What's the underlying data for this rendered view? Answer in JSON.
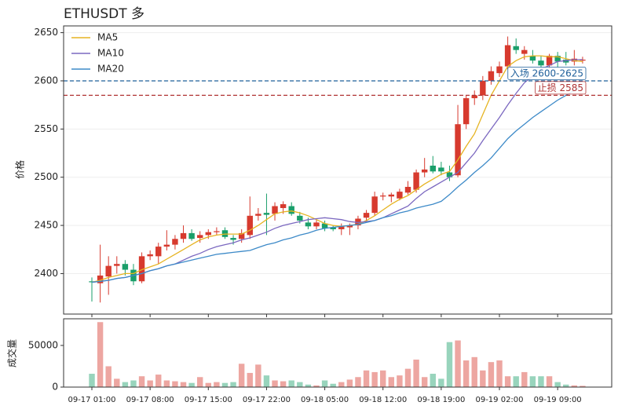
{
  "chart_data": {
    "type": "candlestick",
    "title": "ETHUSDT  多",
    "ylabel": "价格",
    "categories": [
      "09-17 01:00",
      null,
      null,
      null,
      null,
      null,
      null,
      "09-17 08:00",
      null,
      null,
      null,
      null,
      null,
      null,
      "09-17 15:00",
      null,
      null,
      null,
      null,
      null,
      null,
      "09-17 22:00",
      null,
      null,
      null,
      null,
      null,
      null,
      "09-18 05:00",
      null,
      null,
      null,
      null,
      null,
      null,
      "09-18 12:00",
      null,
      null,
      null,
      null,
      null,
      null,
      "09-18 19:00",
      null,
      null,
      null,
      null,
      null,
      null,
      "09-19 02:00",
      null,
      null,
      null,
      null,
      null,
      null,
      "09-19 09:00",
      null,
      null,
      null
    ],
    "xlim": [
      -3.4,
      62.5
    ],
    "ylim": [
      2358,
      2657
    ],
    "yticks": [
      2400,
      2450,
      2500,
      2550,
      2600,
      2650
    ],
    "grid": true,
    "up_color": "#d73a2e",
    "down_color": "#1a9f6a",
    "open": [
      2392,
      2390,
      2397,
      2408,
      2410,
      2404,
      2392,
      2418,
      2418,
      2428,
      2430,
      2436,
      2442,
      2437,
      2440,
      2443,
      2445,
      2437,
      2436,
      2440,
      2460,
      2463,
      2462,
      2468,
      2470,
      2460,
      2453,
      2449,
      2452,
      2448,
      2446,
      2448,
      2450,
      2458,
      2463,
      2480,
      2480,
      2478,
      2484,
      2487,
      2505,
      2512,
      2510,
      2505,
      2502,
      2555,
      2582,
      2585,
      2600,
      2608,
      2615,
      2636,
      2628,
      2626,
      2621,
      2616,
      2626,
      2622,
      2620,
      2621
    ],
    "high": [
      2396,
      2430,
      2418,
      2418,
      2414,
      2410,
      2422,
      2424,
      2432,
      2445,
      2440,
      2450,
      2446,
      2444,
      2446,
      2448,
      2448,
      2440,
      2446,
      2480,
      2468,
      2483,
      2474,
      2475,
      2474,
      2464,
      2458,
      2456,
      2455,
      2450,
      2452,
      2452,
      2460,
      2466,
      2485,
      2484,
      2484,
      2488,
      2496,
      2508,
      2520,
      2522,
      2516,
      2512,
      2575,
      2585,
      2590,
      2605,
      2615,
      2620,
      2646,
      2644,
      2636,
      2632,
      2626,
      2628,
      2630,
      2630,
      2632,
      2625
    ],
    "low": [
      2371,
      2370,
      2378,
      2400,
      2398,
      2388,
      2390,
      2414,
      2410,
      2424,
      2425,
      2432,
      2434,
      2432,
      2436,
      2440,
      2436,
      2430,
      2432,
      2436,
      2455,
      2440,
      2455,
      2462,
      2460,
      2452,
      2446,
      2446,
      2444,
      2444,
      2440,
      2440,
      2446,
      2454,
      2460,
      2476,
      2474,
      2476,
      2482,
      2484,
      2500,
      2504,
      2502,
      2496,
      2500,
      2550,
      2575,
      2580,
      2596,
      2604,
      2612,
      2628,
      2622,
      2618,
      2612,
      2612,
      2614,
      2616,
      2616,
      2618
    ],
    "close": [
      2391,
      2398,
      2408,
      2410,
      2404,
      2392,
      2418,
      2420,
      2428,
      2430,
      2436,
      2442,
      2436,
      2440,
      2443,
      2444,
      2438,
      2435,
      2442,
      2460,
      2462,
      2461,
      2470,
      2472,
      2462,
      2455,
      2449,
      2453,
      2447,
      2446,
      2449,
      2450,
      2457,
      2463,
      2480,
      2481,
      2482,
      2485,
      2490,
      2505,
      2508,
      2506,
      2506,
      2500,
      2555,
      2582,
      2585,
      2600,
      2610,
      2615,
      2637,
      2632,
      2632,
      2621,
      2616,
      2626,
      2620,
      2619,
      2623,
      2622
    ],
    "series": [
      {
        "name": "MA5",
        "color": "#e6b422",
        "values": [
          2391,
          2393,
          2396,
          2398,
          2400,
          2400,
          2404,
          2407,
          2410,
          2415,
          2420,
          2425,
          2430,
          2435,
          2438,
          2440,
          2441,
          2441,
          2441,
          2445,
          2450,
          2456,
          2462,
          2464,
          2465,
          2463,
          2460,
          2456,
          2452,
          2450,
          2449,
          2450,
          2451,
          2455,
          2460,
          2466,
          2472,
          2477,
          2481,
          2487,
          2493,
          2498,
          2503,
          2506,
          2518,
          2532,
          2545,
          2565,
          2585,
          2600,
          2615,
          2621,
          2625,
          2626,
          2626,
          2625,
          2625,
          2623,
          2621,
          2620
        ]
      },
      {
        "name": "MA10",
        "color": "#7b68c0",
        "values": [
          2391,
          2392,
          2393,
          2395,
          2396,
          2398,
          2400,
          2403,
          2405,
          2408,
          2410,
          2414,
          2418,
          2421,
          2425,
          2428,
          2430,
          2432,
          2435,
          2437,
          2440,
          2443,
          2447,
          2450,
          2452,
          2454,
          2456,
          2457,
          2458,
          2457,
          2456,
          2454,
          2453,
          2454,
          2455,
          2458,
          2462,
          2466,
          2470,
          2478,
          2485,
          2490,
          2495,
          2500,
          2505,
          2515,
          2525,
          2538,
          2550,
          2562,
          2575,
          2587,
          2598,
          2605,
          2612,
          2616,
          2620,
          2621,
          2622,
          2622
        ]
      },
      {
        "name": "MA20",
        "color": "#3d8ac8",
        "values": [
          2391,
          2392,
          2393,
          2395,
          2396,
          2398,
          2400,
          2403,
          2405,
          2408,
          2410,
          2412,
          2414,
          2416,
          2418,
          2420,
          2421,
          2422,
          2423,
          2424,
          2427,
          2430,
          2432,
          2435,
          2437,
          2440,
          2442,
          2445,
          2447,
          2448,
          2449,
          2450,
          2451,
          2453,
          2455,
          2458,
          2460,
          2463,
          2465,
          2468,
          2470,
          2472,
          2475,
          2482,
          2490,
          2497,
          2505,
          2512,
          2520,
          2530,
          2540,
          2548,
          2555,
          2562,
          2568,
          2574,
          2580,
          2585,
          2590,
          2595
        ]
      }
    ],
    "legend": "upper left",
    "hlines": [
      {
        "value": 2600,
        "color": "#1f5f9a",
        "label": "入场 2600-2625"
      },
      {
        "value": 2585,
        "color": "#b03333",
        "label": "止损 2585"
      }
    ],
    "volume": {
      "ylabel": "成交量",
      "ylim": [
        0,
        82000
      ],
      "yticks": [
        0,
        50000
      ],
      "values": [
        16000,
        78000,
        25000,
        10000,
        6000,
        8000,
        13000,
        8000,
        15000,
        8000,
        7000,
        6000,
        5000,
        12000,
        5000,
        6000,
        5000,
        6000,
        28000,
        17000,
        27000,
        14000,
        8000,
        7000,
        8000,
        6000,
        3000,
        2000,
        8000,
        4000,
        6000,
        9000,
        12000,
        20000,
        18000,
        20000,
        12000,
        14000,
        22000,
        33000,
        12000,
        16000,
        10000,
        54000,
        56000,
        32000,
        36000,
        20000,
        30000,
        32000,
        13000,
        13000,
        18000,
        13000,
        13000,
        13000,
        6000,
        3000,
        2000,
        1500
      ]
    }
  }
}
